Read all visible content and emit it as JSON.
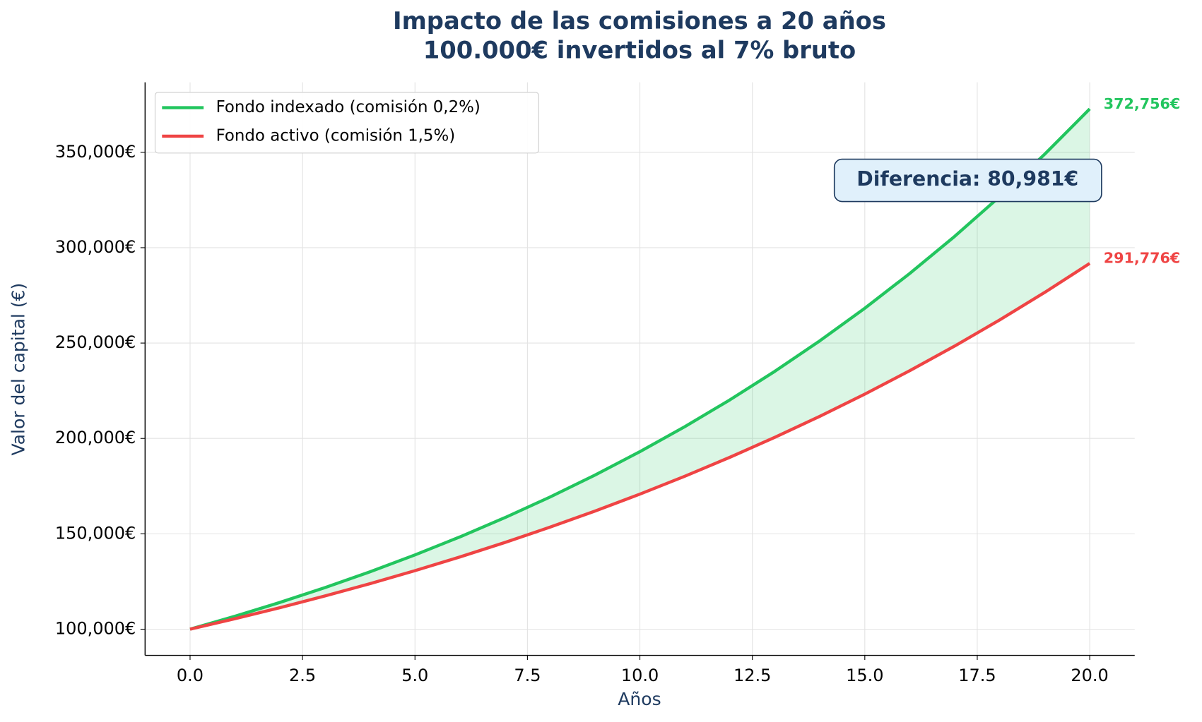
{
  "chart_data": {
    "type": "line",
    "title": "Impacto de las comisiones a 20 años",
    "subtitle": "100.000€ invertidos al 7% bruto",
    "x_label": "Años",
    "y_label": "Valor del capital (€)",
    "annotation": "Diferencia: 80,981€",
    "x": [
      0,
      1,
      2,
      3,
      4,
      5,
      6,
      7,
      8,
      9,
      10,
      11,
      12,
      13,
      14,
      15,
      16,
      17,
      18,
      19,
      20
    ],
    "series": [
      {
        "name": "Fondo indexado (comisión 0,2%)",
        "color": "#22c55e",
        "values": [
          100000,
          106800,
          114062,
          121818,
          130102,
          138949,
          148397,
          158488,
          169265,
          180775,
          193068,
          206196,
          220218,
          235193,
          251185,
          268266,
          286508,
          305990,
          326797,
          349019,
          372756
        ],
        "value_labels": [
          null,
          null,
          null,
          null,
          null,
          null,
          null,
          null,
          null,
          null,
          null,
          null,
          null,
          null,
          null,
          null,
          null,
          null,
          null,
          null,
          "372,756€"
        ]
      },
      {
        "name": "Fondo activo (comisión 1,5%)",
        "color": "#ef4444",
        "values": [
          100000,
          105500,
          111303,
          117424,
          123882,
          130696,
          137884,
          145468,
          153469,
          161909,
          170814,
          180209,
          190121,
          200577,
          211609,
          223248,
          235526,
          248480,
          262147,
          276565,
          291776
        ],
        "value_labels": [
          null,
          null,
          null,
          null,
          null,
          null,
          null,
          null,
          null,
          null,
          null,
          null,
          null,
          null,
          null,
          null,
          null,
          null,
          null,
          null,
          "291,776€"
        ]
      }
    ],
    "fill_between": true,
    "xlim": [
      -1,
      21
    ],
    "ylim": [
      86300,
      386700
    ],
    "xticks": [
      {
        "value": 0,
        "label": "0.0"
      },
      2.5,
      {
        "value": 5,
        "label": "5.0"
      },
      7.5,
      {
        "value": 10,
        "label": "10.0"
      },
      12.5,
      {
        "value": 15,
        "label": "15.0"
      },
      17.5,
      {
        "value": 20,
        "label": "20.0"
      }
    ],
    "yticks": [
      {
        "value": 100000,
        "label": "100,000€"
      },
      {
        "value": 150000,
        "label": "150,000€"
      },
      {
        "value": 200000,
        "label": "200,000€"
      },
      {
        "value": 250000,
        "label": "250,000€"
      },
      {
        "value": 300000,
        "label": "300,000€"
      },
      {
        "value": 350000,
        "label": "350,000€"
      }
    ],
    "grid": true,
    "legend_position": "upper left"
  }
}
